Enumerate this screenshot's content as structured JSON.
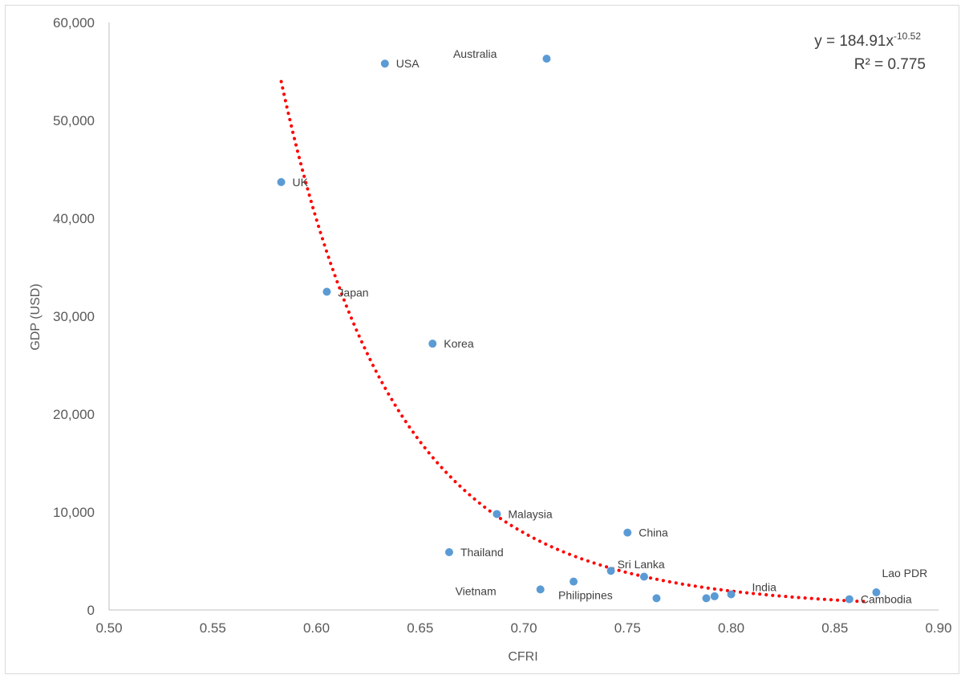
{
  "chart_data": {
    "type": "scatter",
    "title": "",
    "xlabel": "CFRI",
    "ylabel": "GDP (USD)",
    "xlim": [
      0.5,
      0.9
    ],
    "ylim": [
      0,
      60000
    ],
    "x_ticks": [
      "0.50",
      "0.55",
      "0.60",
      "0.65",
      "0.70",
      "0.75",
      "0.80",
      "0.85",
      "0.90"
    ],
    "y_ticks": [
      "0",
      "10,000",
      "20,000",
      "30,000",
      "40,000",
      "50,000",
      "60,000"
    ],
    "grid": false,
    "legend": "none",
    "point_color": "#5b9bd5",
    "points": [
      {
        "label": "USA",
        "x": 0.633,
        "y": 55800
      },
      {
        "label": "Australia",
        "x": 0.711,
        "y": 56300
      },
      {
        "label": "UK",
        "x": 0.583,
        "y": 43700
      },
      {
        "label": "Japan",
        "x": 0.605,
        "y": 32500
      },
      {
        "label": "Korea",
        "x": 0.656,
        "y": 27200
      },
      {
        "label": "Malaysia",
        "x": 0.687,
        "y": 9800
      },
      {
        "label": "China",
        "x": 0.75,
        "y": 7900
      },
      {
        "label": "Thailand",
        "x": 0.664,
        "y": 5900
      },
      {
        "label": "Sri Lanka",
        "x": 0.742,
        "y": 4000
      },
      {
        "label": "",
        "x": 0.758,
        "y": 3400
      },
      {
        "label": "Philippines",
        "x": 0.724,
        "y": 2900
      },
      {
        "label": "Vietnam",
        "x": 0.708,
        "y": 2100
      },
      {
        "label": "",
        "x": 0.764,
        "y": 1200
      },
      {
        "label": "",
        "x": 0.788,
        "y": 1200
      },
      {
        "label": "",
        "x": 0.792,
        "y": 1400
      },
      {
        "label": "India",
        "x": 0.8,
        "y": 1600
      },
      {
        "label": "Cambodia",
        "x": 0.857,
        "y": 1100
      },
      {
        "label": "Lao PDR",
        "x": 0.87,
        "y": 1800
      }
    ],
    "trendline": {
      "type": "power",
      "coefficient": 184.91,
      "exponent": -10.52,
      "x_range": [
        0.583,
        0.865
      ],
      "color": "#ff0000",
      "style": "dotted"
    },
    "equation_text": "y = 184.91x",
    "equation_exponent": "-10.52",
    "r2_text": "R² = 0.775"
  }
}
